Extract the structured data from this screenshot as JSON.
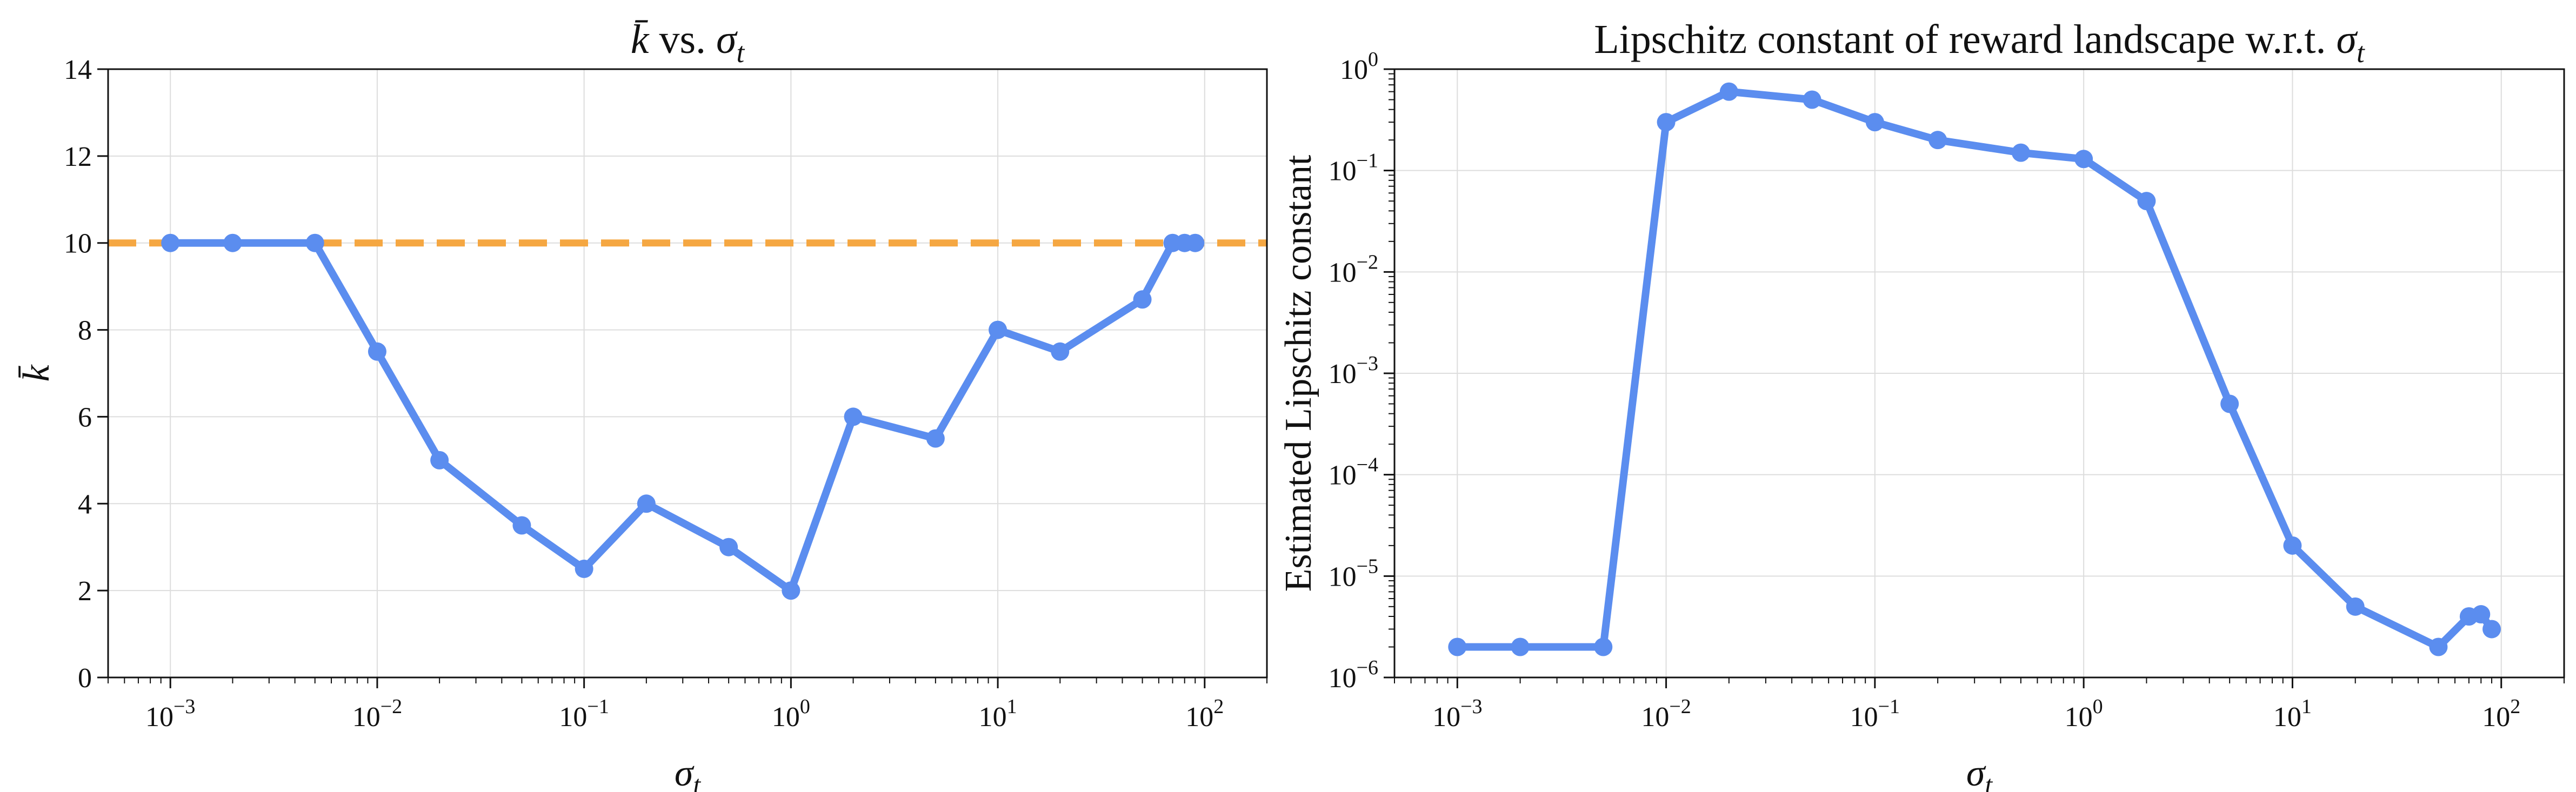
{
  "chart_data": [
    {
      "type": "line",
      "title": "k̄ vs. σt",
      "xlabel": "σt",
      "ylabel": "k̄",
      "x_scale": "log",
      "y_scale": "linear",
      "xlim": [
        0.0005,
        200
      ],
      "ylim": [
        0,
        14
      ],
      "x_ticks": [
        {
          "base": "10",
          "exp": "−3",
          "value": 0.001
        },
        {
          "base": "10",
          "exp": "−2",
          "value": 0.01
        },
        {
          "base": "10",
          "exp": "−1",
          "value": 0.1
        },
        {
          "base": "10",
          "exp": "0",
          "value": 1
        },
        {
          "base": "10",
          "exp": "1",
          "value": 10
        },
        {
          "base": "10",
          "exp": "2",
          "value": 100
        }
      ],
      "y_ticks": [
        {
          "label": "0",
          "value": 0
        },
        {
          "label": "2",
          "value": 2
        },
        {
          "label": "4",
          "value": 4
        },
        {
          "label": "6",
          "value": 6
        },
        {
          "label": "8",
          "value": 8
        },
        {
          "label": "10",
          "value": 10
        },
        {
          "label": "12",
          "value": 12
        },
        {
          "label": "14",
          "value": 14
        }
      ],
      "grid": true,
      "reference_line": {
        "y": 10,
        "style": "dashed",
        "color": "#f5a742"
      },
      "series": [
        {
          "color": "#5b8def",
          "x": [
            0.001,
            0.002,
            0.005,
            0.01,
            0.02,
            0.05,
            0.1,
            0.2,
            0.5,
            1,
            2,
            5,
            10,
            20,
            50,
            70,
            80,
            90
          ],
          "y": [
            10,
            10,
            10,
            7.5,
            5,
            3.5,
            2.5,
            4,
            3,
            2,
            6,
            5.5,
            8,
            7.5,
            8.7,
            10,
            10,
            10
          ]
        }
      ]
    },
    {
      "type": "line",
      "title": "Lipschitz constant of reward landscape w.r.t. σt",
      "xlabel": "σt",
      "ylabel": "Estimated Lipschitz constant",
      "x_scale": "log",
      "y_scale": "log",
      "xlim": [
        0.0005,
        200
      ],
      "ylim": [
        1e-06,
        1
      ],
      "x_ticks": [
        {
          "base": "10",
          "exp": "−3",
          "value": 0.001
        },
        {
          "base": "10",
          "exp": "−2",
          "value": 0.01
        },
        {
          "base": "10",
          "exp": "−1",
          "value": 0.1
        },
        {
          "base": "10",
          "exp": "0",
          "value": 1
        },
        {
          "base": "10",
          "exp": "1",
          "value": 10
        },
        {
          "base": "10",
          "exp": "2",
          "value": 100
        }
      ],
      "y_ticks": [
        {
          "base": "10",
          "exp": "−6",
          "value": 1e-06
        },
        {
          "base": "10",
          "exp": "−5",
          "value": 1e-05
        },
        {
          "base": "10",
          "exp": "−4",
          "value": 0.0001
        },
        {
          "base": "10",
          "exp": "−3",
          "value": 0.001
        },
        {
          "base": "10",
          "exp": "−2",
          "value": 0.01
        },
        {
          "base": "10",
          "exp": "−1",
          "value": 0.1
        },
        {
          "base": "10",
          "exp": "0",
          "value": 1
        }
      ],
      "grid": true,
      "series": [
        {
          "color": "#5b8def",
          "x": [
            0.001,
            0.002,
            0.005,
            0.01,
            0.02,
            0.05,
            0.1,
            0.2,
            0.5,
            1,
            2,
            5,
            10,
            20,
            50,
            70,
            80,
            90
          ],
          "y": [
            2e-06,
            2e-06,
            2e-06,
            0.3,
            0.6,
            0.5,
            0.3,
            0.2,
            0.15,
            0.13,
            0.05,
            0.0005,
            2e-05,
            5e-06,
            2e-06,
            4e-06,
            4.2e-06,
            3e-06
          ]
        }
      ]
    }
  ]
}
